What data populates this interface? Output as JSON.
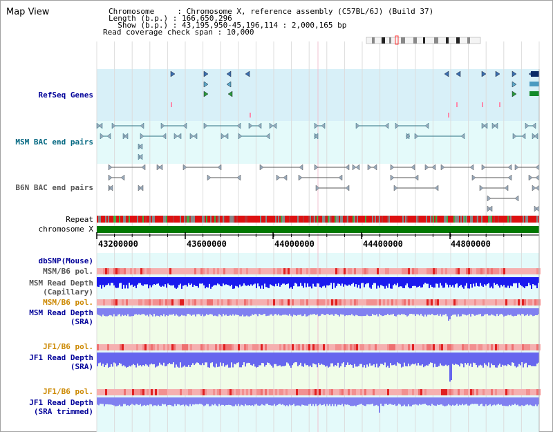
{
  "page_title": "Map View",
  "info": {
    "line1": "Chromosome     : Chromosome X, reference assembly (C57BL/6J) (Build 37)",
    "line2": "Length (b.p.) : 166,650,296",
    "line3": "  Show (b.p.) : 43,195,950-45,196,114 : 2,000,165 bp",
    "line4": "Read coverage check span : 10,000"
  },
  "tracks": {
    "refseq": "RefSeq Genes",
    "msm_bac": "MSM BAC end pairs",
    "b6n_bac": "B6N BAC end pairs",
    "repeat": "Repeat",
    "chromosome": "chromosome X",
    "dbsnp": "dbSNP(Mouse)",
    "msm_b6_pol_1": "MSM/B6 pol.",
    "msm_depth_cap_1": "MSM Read Depth",
    "msm_depth_cap_2": "(Capillary)",
    "msm_b6_pol_2": "MSM/B6 pol.",
    "msm_depth_sra_1": "MSM Read Depth",
    "msm_depth_sra_2": "(SRA)",
    "jf1_b6_pol_1": "JF1/B6 pol.",
    "jf1_depth_sra_1": "JF1 Read Depth",
    "jf1_depth_sra_2": "(SRA)",
    "jf1_b6_pol_2": "JF1/B6 pol.",
    "jf1_depth_trim_1": "JF1 Read Depth",
    "jf1_depth_trim_2": "(SRA trimmed)"
  },
  "axis": {
    "ticks": [
      "43200000",
      "43600000",
      "44000000",
      "44400000",
      "44800000"
    ]
  },
  "colors": {
    "navy": "#000099",
    "teal": "#006680",
    "orange": "#cc8800",
    "gray": "#555555",
    "refseq_bg": "#d8f0f8",
    "bac_bg": "#e4fafa",
    "chrom_green": "#007700"
  }
}
